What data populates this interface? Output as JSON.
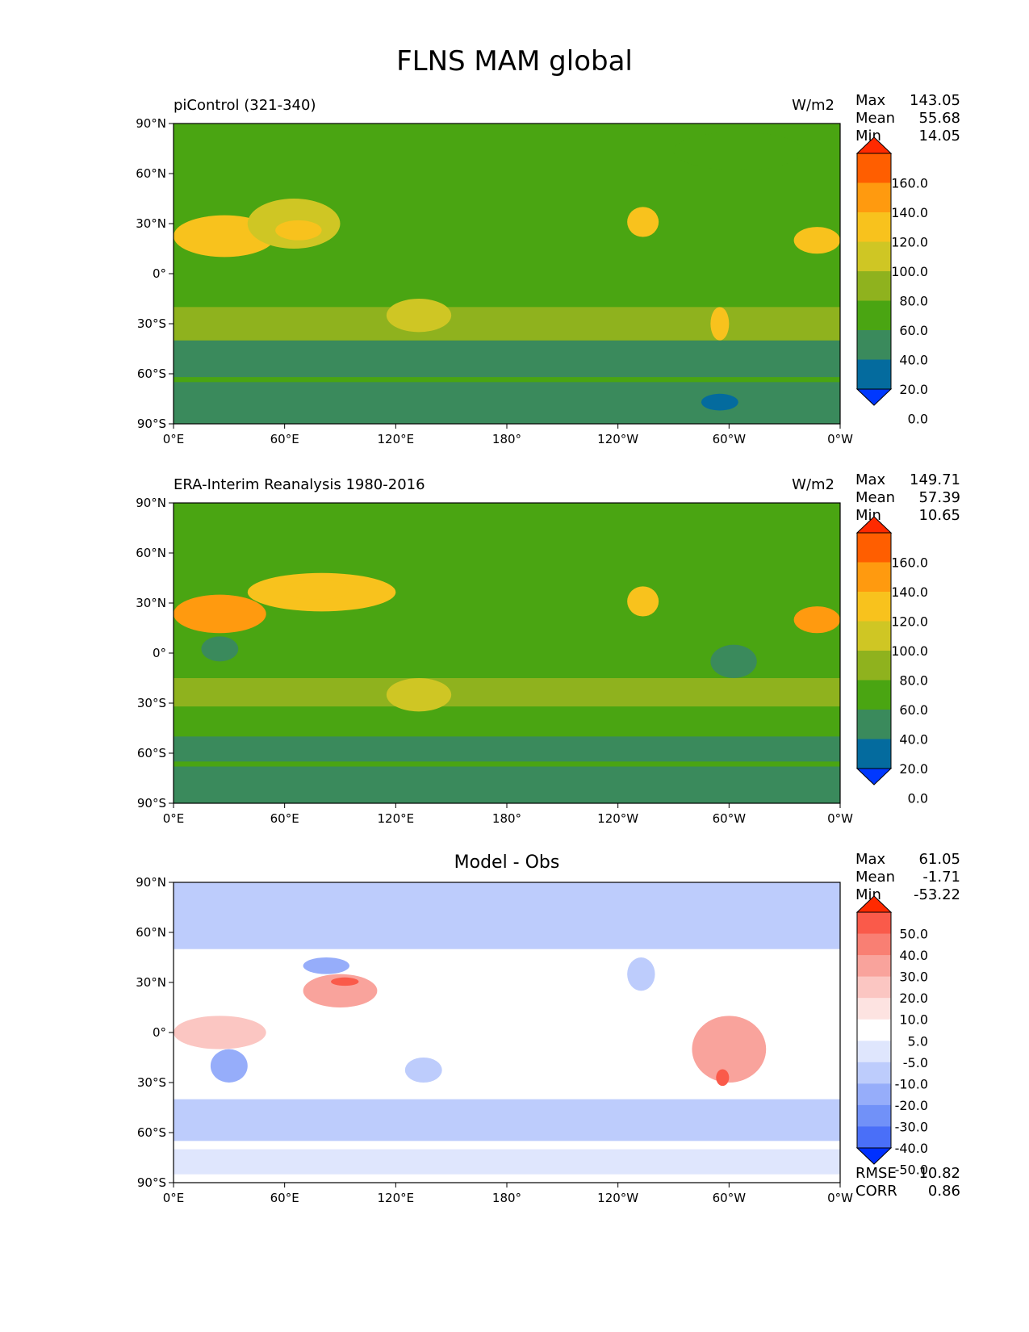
{
  "figure": {
    "title": "FLNS MAM global"
  },
  "axes": {
    "x_ticks": [
      "0°E",
      "60°E",
      "120°E",
      "180°",
      "120°W",
      "60°W",
      "0°W"
    ],
    "y_ticks": [
      "90°N",
      "60°N",
      "30°N",
      "0°",
      "30°S",
      "60°S",
      "90°S"
    ],
    "xlim": [
      0,
      360
    ],
    "ylim": [
      -90,
      90
    ]
  },
  "panels": [
    {
      "id": "model",
      "title": "piControl (321-340)",
      "units": "W/m2",
      "stats": [
        {
          "label": "Max",
          "value": "143.05"
        },
        {
          "label": "Mean",
          "value": "55.68"
        },
        {
          "label": "Min",
          "value": "14.05"
        }
      ],
      "colorbar": {
        "labels": [
          "160.0",
          "140.0",
          "120.0",
          "100.0",
          "80.0",
          "60.0",
          "40.0",
          "20.0",
          "0.0"
        ],
        "colors": [
          "#ff2a00",
          "#ff5e00",
          "#ff9a0f",
          "#f8c21d",
          "#cfc624",
          "#8fb21e",
          "#4aa512",
          "#3a8a5c",
          "#046b9e",
          "#0038ff"
        ]
      }
    },
    {
      "id": "obs",
      "title": "ERA-Interim Reanalysis 1980-2016",
      "units": "W/m2",
      "stats": [
        {
          "label": "Max",
          "value": "149.71"
        },
        {
          "label": "Mean",
          "value": "57.39"
        },
        {
          "label": "Min",
          "value": "10.65"
        }
      ],
      "colorbar": {
        "labels": [
          "160.0",
          "140.0",
          "120.0",
          "100.0",
          "80.0",
          "60.0",
          "40.0",
          "20.0",
          "0.0"
        ],
        "colors": [
          "#ff2a00",
          "#ff5e00",
          "#ff9a0f",
          "#f8c21d",
          "#cfc624",
          "#8fb21e",
          "#4aa512",
          "#3a8a5c",
          "#046b9e",
          "#0038ff"
        ]
      }
    },
    {
      "id": "diff",
      "title": "Model - Obs",
      "stats": [
        {
          "label": "Max",
          "value": "61.05"
        },
        {
          "label": "Mean",
          "value": "-1.71"
        },
        {
          "label": "Min",
          "value": "-53.22"
        }
      ],
      "colorbar": {
        "labels": [
          "50.0",
          "40.0",
          "30.0",
          "20.0",
          "10.0",
          "5.0",
          "-5.0",
          "-10.0",
          "-20.0",
          "-30.0",
          "-40.0",
          "-50.0"
        ],
        "colors": [
          "#ff2a00",
          "#fa5a4a",
          "#f97f73",
          "#f9a39c",
          "#fbc6c2",
          "#fde3e1",
          "#ffffff",
          "#dfe6fd",
          "#bdccfc",
          "#96adfa",
          "#7191f8",
          "#4a6ff8",
          "#0030ff"
        ]
      },
      "extra": [
        {
          "label": "RMSE",
          "value": "10.82"
        },
        {
          "label": "CORR",
          "value": "0.86"
        }
      ]
    }
  ],
  "chart_data": [
    {
      "type": "heatmap",
      "title": "piControl (321-340)",
      "units": "W/m2",
      "xlim": [
        0,
        360
      ],
      "ylim": [
        -90,
        90
      ],
      "levels": [
        0,
        20,
        40,
        60,
        80,
        100,
        120,
        140,
        160
      ],
      "fields": [
        {
          "lon": [
            0,
            360
          ],
          "lat": [
            -90,
            90
          ],
          "value": 50
        },
        {
          "lon": [
            0,
            360
          ],
          "lat": [
            -90,
            -65
          ],
          "value": 30
        },
        {
          "lon": [
            0,
            360
          ],
          "lat": [
            -62,
            -40
          ],
          "value": 30
        },
        {
          "lon": [
            0,
            360
          ],
          "lat": [
            -40,
            -20
          ],
          "value": 60
        },
        {
          "lon": [
            0,
            55
          ],
          "lat": [
            10,
            35
          ],
          "value": 110
        },
        {
          "lon": [
            40,
            90
          ],
          "lat": [
            15,
            45
          ],
          "value": 95
        },
        {
          "lon": [
            55,
            80
          ],
          "lat": [
            20,
            32
          ],
          "value": 115
        },
        {
          "lon": [
            115,
            150
          ],
          "lat": [
            -35,
            -15
          ],
          "value": 85
        },
        {
          "lon": [
            245,
            262
          ],
          "lat": [
            22,
            40
          ],
          "value": 100
        },
        {
          "lon": [
            335,
            360
          ],
          "lat": [
            12,
            28
          ],
          "value": 110
        },
        {
          "lon": [
            290,
            300
          ],
          "lat": [
            -40,
            -20
          ],
          "value": 100
        },
        {
          "lon": [
            270,
            340
          ],
          "lat": [
            62,
            85
          ],
          "value": 45
        },
        {
          "lon": [
            285,
            305
          ],
          "lat": [
            -82,
            -72
          ],
          "value": 10
        }
      ]
    },
    {
      "type": "heatmap",
      "title": "ERA-Interim Reanalysis 1980-2016",
      "units": "W/m2",
      "xlim": [
        0,
        360
      ],
      "ylim": [
        -90,
        90
      ],
      "levels": [
        0,
        20,
        40,
        60,
        80,
        100,
        120,
        140,
        160
      ],
      "fields": [
        {
          "lon": [
            0,
            360
          ],
          "lat": [
            -90,
            90
          ],
          "value": 50
        },
        {
          "lon": [
            0,
            360
          ],
          "lat": [
            -90,
            -68
          ],
          "value": 35
        },
        {
          "lon": [
            0,
            360
          ],
          "lat": [
            -65,
            -50
          ],
          "value": 35
        },
        {
          "lon": [
            0,
            360
          ],
          "lat": [
            -32,
            -15
          ],
          "value": 62
        },
        {
          "lon": [
            0,
            50
          ],
          "lat": [
            12,
            35
          ],
          "value": 125
        },
        {
          "lon": [
            40,
            120
          ],
          "lat": [
            25,
            48
          ],
          "value": 100
        },
        {
          "lon": [
            60,
            95
          ],
          "lat": [
            32,
            44
          ],
          "value": 115
        },
        {
          "lon": [
            115,
            150
          ],
          "lat": [
            -35,
            -15
          ],
          "value": 95
        },
        {
          "lon": [
            245,
            262
          ],
          "lat": [
            22,
            40
          ],
          "value": 115
        },
        {
          "lon": [
            335,
            360
          ],
          "lat": [
            12,
            28
          ],
          "value": 120
        },
        {
          "lon": [
            290,
            315
          ],
          "lat": [
            -15,
            5
          ],
          "value": 30
        },
        {
          "lon": [
            15,
            35
          ],
          "lat": [
            -5,
            10
          ],
          "value": 35
        }
      ]
    },
    {
      "type": "heatmap",
      "title": "Model - Obs",
      "xlim": [
        0,
        360
      ],
      "ylim": [
        -90,
        90
      ],
      "levels": [
        -50,
        -40,
        -30,
        -20,
        -10,
        -5,
        5,
        10,
        20,
        30,
        40,
        50
      ],
      "fields": [
        {
          "lon": [
            0,
            360
          ],
          "lat": [
            -90,
            90
          ],
          "value": 0
        },
        {
          "lon": [
            0,
            360
          ],
          "lat": [
            50,
            90
          ],
          "value": -12
        },
        {
          "lon": [
            0,
            360
          ],
          "lat": [
            -65,
            -40
          ],
          "value": -15
        },
        {
          "lon": [
            0,
            360
          ],
          "lat": [
            -85,
            -70
          ],
          "value": -8
        },
        {
          "lon": [
            0,
            50
          ],
          "lat": [
            -10,
            10
          ],
          "value": 15
        },
        {
          "lon": [
            70,
            110
          ],
          "lat": [
            15,
            35
          ],
          "value": 25
        },
        {
          "lon": [
            85,
            100
          ],
          "lat": [
            28,
            33
          ],
          "value": 45
        },
        {
          "lon": [
            70,
            95
          ],
          "lat": [
            35,
            45
          ],
          "value": -25
        },
        {
          "lon": [
            280,
            320
          ],
          "lat": [
            -30,
            10
          ],
          "value": 20
        },
        {
          "lon": [
            293,
            300
          ],
          "lat": [
            -32,
            -22
          ],
          "value": 40
        },
        {
          "lon": [
            20,
            40
          ],
          "lat": [
            -30,
            -10
          ],
          "value": -22
        },
        {
          "lon": [
            245,
            260
          ],
          "lat": [
            25,
            45
          ],
          "value": -20
        },
        {
          "lon": [
            125,
            145
          ],
          "lat": [
            -30,
            -15
          ],
          "value": -12
        }
      ]
    }
  ]
}
